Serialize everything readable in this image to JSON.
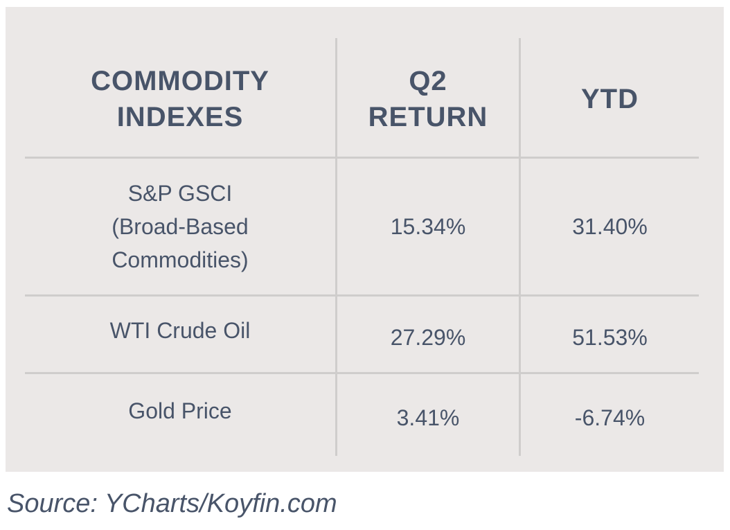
{
  "table": {
    "headers": {
      "col1": [
        "COMMODITY",
        "INDEXES"
      ],
      "col2": [
        "Q2",
        "RETURN"
      ],
      "col3": "YTD"
    },
    "rows": [
      {
        "name_lines": [
          "S&P GSCI",
          "(Broad-Based",
          "Commodities)"
        ],
        "q2_return": "15.34%",
        "ytd": "31.40%"
      },
      {
        "name": "WTI Crude Oil",
        "q2_return": "27.29%",
        "ytd": "51.53%"
      },
      {
        "name": "Gold Price",
        "q2_return": "3.41%",
        "ytd": "-6.74%"
      }
    ]
  },
  "source": "Source: YCharts/Koyfin.com",
  "colors": {
    "panel_background": "#ebe8e7",
    "text": "#485469",
    "rule": "#cfcdcc"
  }
}
